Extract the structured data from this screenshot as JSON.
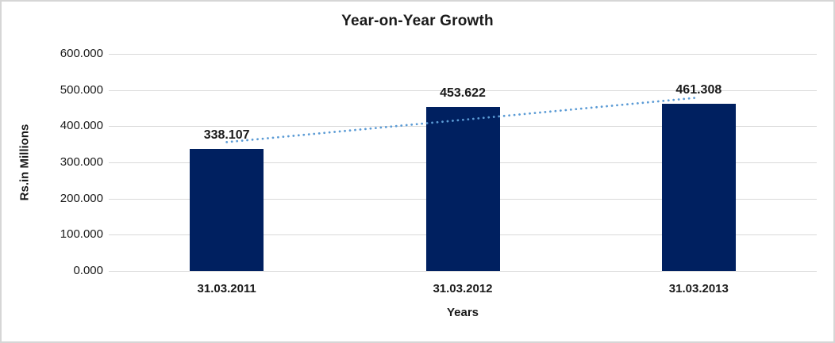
{
  "chart_data": {
    "type": "bar",
    "title": "Year-on-Year Growth",
    "categories": [
      "31.03.2011",
      "31.03.2012",
      "31.03.2013"
    ],
    "values": [
      338.107,
      453.622,
      461.308
    ],
    "value_labels": [
      "338.107",
      "453.622",
      "461.308"
    ],
    "xlabel": "Years",
    "ylabel": "Rs.in Millions",
    "ylim": [
      0,
      600
    ],
    "ytick_step": 100,
    "ytick_labels": [
      "0.000",
      "100.000",
      "200.000",
      "300.000",
      "400.000",
      "500.000",
      "600.000"
    ],
    "grid": true,
    "legend_position": "none",
    "trendline": {
      "type": "linear",
      "style": "dotted"
    }
  },
  "colors": {
    "bar": "#002060",
    "trendline": "#5B9BD5",
    "gridline": "#D9D9D9",
    "text": "#1A1A1A",
    "frame_border": "#D6D6D6",
    "background": "#FFFFFF"
  }
}
